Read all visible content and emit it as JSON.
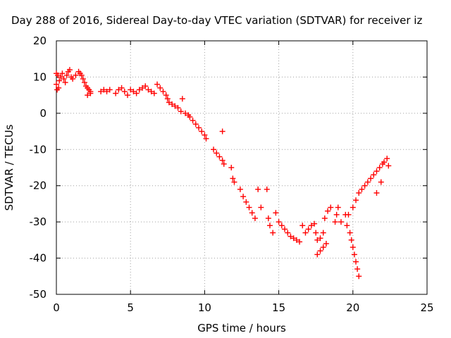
{
  "chart_data": {
    "type": "scatter",
    "title": "Day 288 of 2016, Sidereal Day-to-day VTEC variation (SDTVAR) for receiver iz",
    "xlabel": "GPS time / hours",
    "ylabel": "SDTVAR / TECUs",
    "xlim": [
      0,
      25
    ],
    "ylim": [
      -50,
      20
    ],
    "xticks": [
      0,
      5,
      10,
      15,
      20,
      25
    ],
    "yticks": [
      -50,
      -40,
      -30,
      -20,
      -10,
      0,
      10,
      20
    ],
    "grid": true,
    "legend": "none",
    "marker": "plus",
    "color": "#ff0000",
    "series": [
      {
        "points": [
          [
            0.0,
            11.0
          ],
          [
            0.0,
            8.0
          ],
          [
            0.05,
            6.5
          ],
          [
            0.1,
            10.5
          ],
          [
            0.15,
            7.0
          ],
          [
            0.2,
            9.0
          ],
          [
            0.3,
            10.0
          ],
          [
            0.4,
            11.0
          ],
          [
            0.5,
            9.5
          ],
          [
            0.6,
            8.5
          ],
          [
            0.7,
            10.5
          ],
          [
            0.8,
            11.5
          ],
          [
            0.9,
            12.0
          ],
          [
            1.0,
            10.0
          ],
          [
            1.1,
            9.5
          ],
          [
            1.3,
            10.5
          ],
          [
            1.5,
            11.5
          ],
          [
            1.6,
            11.0
          ],
          [
            1.7,
            10.5
          ],
          [
            1.8,
            9.5
          ],
          [
            1.9,
            8.5
          ],
          [
            2.0,
            7.5
          ],
          [
            2.1,
            7.0
          ],
          [
            2.2,
            6.5
          ],
          [
            2.3,
            6.0
          ],
          [
            2.1,
            5.0
          ],
          [
            2.3,
            5.5
          ],
          [
            3.0,
            6.0
          ],
          [
            3.2,
            6.5
          ],
          [
            3.4,
            6.0
          ],
          [
            3.6,
            6.5
          ],
          [
            4.0,
            5.5
          ],
          [
            4.2,
            6.5
          ],
          [
            4.4,
            7.0
          ],
          [
            4.6,
            6.0
          ],
          [
            4.8,
            5.0
          ],
          [
            5.0,
            6.5
          ],
          [
            5.2,
            6.0
          ],
          [
            5.4,
            5.5
          ],
          [
            5.6,
            6.5
          ],
          [
            5.8,
            7.0
          ],
          [
            6.0,
            7.5
          ],
          [
            6.2,
            6.5
          ],
          [
            6.4,
            6.0
          ],
          [
            6.6,
            5.5
          ],
          [
            6.8,
            8.0
          ],
          [
            7.0,
            7.0
          ],
          [
            7.2,
            6.0
          ],
          [
            7.4,
            5.0
          ],
          [
            7.5,
            4.0
          ],
          [
            7.6,
            3.0
          ],
          [
            7.8,
            2.5
          ],
          [
            8.0,
            2.0
          ],
          [
            8.2,
            1.5
          ],
          [
            8.4,
            0.5
          ],
          [
            8.5,
            4.0
          ],
          [
            8.7,
            0.0
          ],
          [
            8.9,
            -0.5
          ],
          [
            9.0,
            -1.0
          ],
          [
            9.2,
            -2.0
          ],
          [
            9.4,
            -3.0
          ],
          [
            9.6,
            -4.0
          ],
          [
            9.8,
            -5.0
          ],
          [
            10.0,
            -6.0
          ],
          [
            10.1,
            -7.0
          ],
          [
            10.6,
            -10.0
          ],
          [
            10.8,
            -11.0
          ],
          [
            11.0,
            -12.0
          ],
          [
            11.2,
            -13.0
          ],
          [
            11.3,
            -14.0
          ],
          [
            11.2,
            -5.0
          ],
          [
            11.8,
            -15.0
          ],
          [
            11.9,
            -18.0
          ],
          [
            12.0,
            -19.0
          ],
          [
            12.4,
            -21.0
          ],
          [
            12.6,
            -23.0
          ],
          [
            12.8,
            -24.5
          ],
          [
            13.0,
            -26.0
          ],
          [
            13.2,
            -27.5
          ],
          [
            13.4,
            -29.0
          ],
          [
            13.6,
            -21.0
          ],
          [
            13.8,
            -26.0
          ],
          [
            14.2,
            -21.0
          ],
          [
            14.3,
            -29.0
          ],
          [
            14.4,
            -31.0
          ],
          [
            14.6,
            -33.0
          ],
          [
            14.8,
            -27.5
          ],
          [
            15.0,
            -30.0
          ],
          [
            15.2,
            -31.0
          ],
          [
            15.4,
            -32.0
          ],
          [
            15.6,
            -33.0
          ],
          [
            15.8,
            -34.0
          ],
          [
            16.0,
            -34.5
          ],
          [
            16.2,
            -35.0
          ],
          [
            16.4,
            -35.5
          ],
          [
            16.6,
            -31.0
          ],
          [
            16.8,
            -33.0
          ],
          [
            17.0,
            -32.0
          ],
          [
            17.2,
            -31.0
          ],
          [
            17.4,
            -30.5
          ],
          [
            17.5,
            -33.0
          ],
          [
            17.6,
            -35.0
          ],
          [
            17.8,
            -34.5
          ],
          [
            18.0,
            -33.0
          ],
          [
            18.1,
            -29.0
          ],
          [
            18.3,
            -27.0
          ],
          [
            18.5,
            -26.0
          ],
          [
            17.6,
            -39.0
          ],
          [
            17.8,
            -38.0
          ],
          [
            18.0,
            -37.0
          ],
          [
            18.2,
            -36.0
          ],
          [
            18.8,
            -30.0
          ],
          [
            18.9,
            -28.0
          ],
          [
            19.0,
            -26.0
          ],
          [
            19.2,
            -30.0
          ],
          [
            19.5,
            -28.0
          ],
          [
            19.6,
            -31.0
          ],
          [
            19.8,
            -33.0
          ],
          [
            19.9,
            -35.0
          ],
          [
            20.0,
            -37.0
          ],
          [
            20.1,
            -39.0
          ],
          [
            20.2,
            -41.0
          ],
          [
            20.3,
            -43.0
          ],
          [
            20.4,
            -45.0
          ],
          [
            19.7,
            -28.0
          ],
          [
            20.0,
            -26.0
          ],
          [
            20.2,
            -24.0
          ],
          [
            20.4,
            -22.0
          ],
          [
            20.6,
            -21.0
          ],
          [
            20.8,
            -20.0
          ],
          [
            21.0,
            -19.0
          ],
          [
            21.2,
            -18.0
          ],
          [
            21.4,
            -17.0
          ],
          [
            21.6,
            -16.0
          ],
          [
            21.8,
            -15.0
          ],
          [
            21.6,
            -22.0
          ],
          [
            21.9,
            -19.0
          ],
          [
            22.0,
            -14.0
          ],
          [
            22.1,
            -13.5
          ],
          [
            22.3,
            -12.5
          ],
          [
            22.4,
            -14.5
          ]
        ]
      }
    ]
  }
}
